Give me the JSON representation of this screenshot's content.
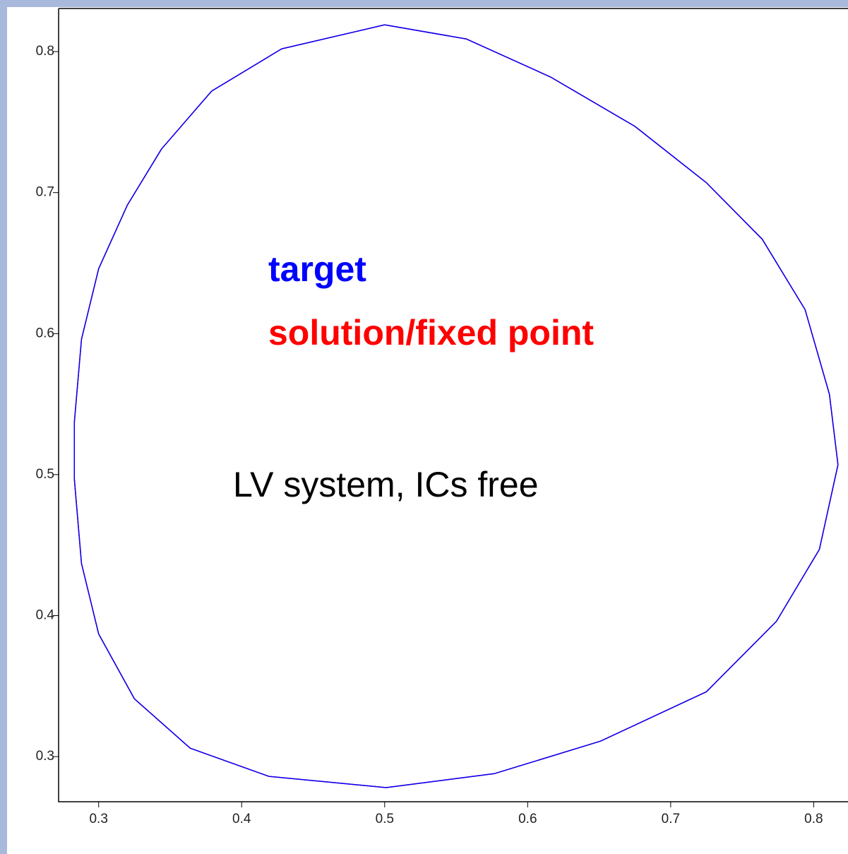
{
  "chart_data": {
    "type": "line",
    "annotations": [
      {
        "text": "target",
        "color": "#0000ff"
      },
      {
        "text": "solution/fixed point",
        "color": "#ff0000"
      },
      {
        "text": "LV system, ICs free",
        "color": "#000000"
      }
    ],
    "xlim": [
      0.272,
      0.824
    ],
    "ylim": [
      0.268,
      0.8306
    ],
    "xticks": [
      0.3,
      0.4,
      0.5,
      0.6,
      0.7,
      0.8
    ],
    "yticks": [
      0.3,
      0.4,
      0.5,
      0.6,
      0.7,
      0.8
    ],
    "series": [
      {
        "name": "solution/fixed point",
        "color": "#ff0000",
        "x": [
          0.5,
          0.557,
          0.616,
          0.675,
          0.725,
          0.764,
          0.794,
          0.811,
          0.817,
          0.804,
          0.774,
          0.725,
          0.651,
          0.577,
          0.501,
          0.419,
          0.364,
          0.325,
          0.3,
          0.288,
          0.283,
          0.283,
          0.288,
          0.3,
          0.32,
          0.344,
          0.379,
          0.428,
          0.5
        ],
        "values": [
          0.819,
          0.809,
          0.782,
          0.747,
          0.707,
          0.667,
          0.617,
          0.557,
          0.507,
          0.447,
          0.396,
          0.346,
          0.311,
          0.288,
          0.278,
          0.286,
          0.306,
          0.341,
          0.387,
          0.437,
          0.497,
          0.537,
          0.596,
          0.646,
          0.691,
          0.731,
          0.772,
          0.802,
          0.819
        ]
      },
      {
        "name": "target",
        "color": "#0000ff",
        "x": [
          0.5,
          0.557,
          0.616,
          0.675,
          0.725,
          0.764,
          0.794,
          0.811,
          0.817,
          0.804,
          0.774,
          0.725,
          0.651,
          0.577,
          0.501,
          0.419,
          0.364,
          0.325,
          0.3,
          0.288,
          0.283,
          0.283,
          0.288,
          0.3,
          0.32,
          0.344,
          0.379,
          0.428,
          0.5
        ],
        "values": [
          0.819,
          0.809,
          0.782,
          0.747,
          0.707,
          0.667,
          0.617,
          0.557,
          0.507,
          0.447,
          0.396,
          0.346,
          0.311,
          0.288,
          0.278,
          0.286,
          0.306,
          0.341,
          0.387,
          0.437,
          0.497,
          0.537,
          0.596,
          0.646,
          0.691,
          0.731,
          0.772,
          0.802,
          0.819
        ]
      }
    ]
  }
}
